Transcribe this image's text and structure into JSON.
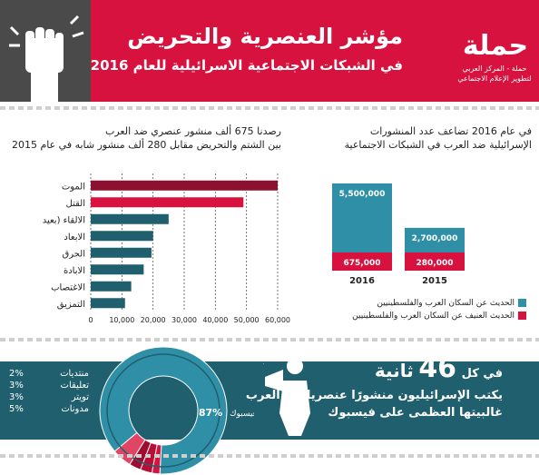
{
  "header": {
    "title": "مؤشر العنصرية والتحريض",
    "subtitle": "في الشبكات الاجتماعية الاسرائيلية للعام 2016",
    "org_logo": "حملة",
    "org_name": "حملة - المركز العربي لتطوير الإعلام الاجتماعي"
  },
  "colors": {
    "red": "#d7123f",
    "teal": "#2e8fa6",
    "dark_teal": "#1f5f6e",
    "gray": "#4a4a4a"
  },
  "left_panel": {
    "heading_line1": "رصدنا 675 ألف منشور عنصري ضد العرب",
    "heading_line2": "بين  الشتم  والتحريض مقابل 280 ألف منشور شابه في عام 2015"
  },
  "right_panel": {
    "heading_line1": "في عام 2016  تضاعف عدد المنشورات",
    "heading_line2": "الإسرائيلية ضد العرب في الشبكات الاجتماعية"
  },
  "chart_data": [
    {
      "type": "bar",
      "orientation": "horizontal",
      "categories": [
        "الموت",
        "القتل",
        "الالقاء (بعيد",
        "الابعاد",
        "الحرق",
        "الابادة",
        "الاغتصاب",
        "التمزيق"
      ],
      "values": [
        60000,
        49000,
        25000,
        20000,
        19500,
        17000,
        13000,
        11000
      ],
      "xticks": [
        "0",
        "10,000",
        "20,000",
        "30,000",
        "40,000",
        "50,000",
        "60,000"
      ],
      "xlim": [
        0,
        60000
      ],
      "highlight_index": [
        0,
        1
      ]
    },
    {
      "type": "bar",
      "stacked": true,
      "categories": [
        "2016",
        "2015"
      ],
      "series": [
        {
          "name": "الحديث عن السكان العرب والفلسطينيين",
          "values": [
            5500000,
            2700000
          ],
          "labels": [
            "5,500,000",
            "2,700,000"
          ]
        },
        {
          "name": "الحديث العنيف عن السكان العرب والفلسطينيين",
          "values": [
            675000,
            280000
          ],
          "labels": [
            "675,000",
            "280,000"
          ]
        }
      ],
      "legend": "bottom"
    },
    {
      "type": "pie",
      "style": "donut",
      "slices": [
        {
          "label": "فيسبوك",
          "value": 87,
          "text": "87%"
        },
        {
          "label": "منتديات",
          "value": 2,
          "text": "2%"
        },
        {
          "label": "تعليقات",
          "value": 3,
          "text": "3%"
        },
        {
          "label": "تويتر",
          "value": 3,
          "text": "3%"
        },
        {
          "label": "مدونات",
          "value": 5,
          "text": "5%"
        }
      ]
    }
  ],
  "bottom": {
    "prefix": "في كل",
    "number": "46",
    "unit": "ثانية",
    "line2": "يكتب الإسرائيليون منشورًا عنصريا ضد العرب",
    "line3": "غالبيتها العظمى على فيسبوك"
  }
}
